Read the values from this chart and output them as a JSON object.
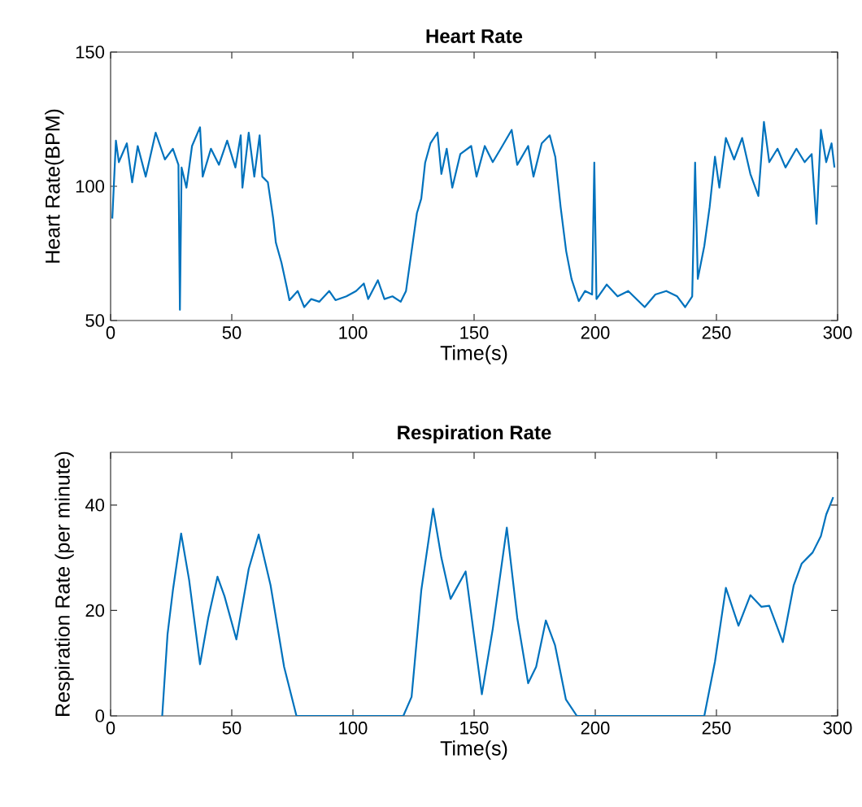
{
  "chart_data": [
    {
      "type": "line",
      "title": "Heart Rate",
      "xlabel": "Time(s)",
      "ylabel": "Heart Rate(BPM)",
      "xlim": [
        0,
        300
      ],
      "ylim": [
        50,
        150
      ],
      "xticks": [
        0,
        50,
        100,
        150,
        200,
        250,
        300
      ],
      "yticks": [
        50,
        100,
        150
      ],
      "grid": false,
      "marker": "none",
      "line_style": "solid",
      "series": [
        {
          "color": "#0072bd",
          "x": [
            0.7,
            2.2,
            3.4,
            6.7,
            8.9,
            11.2,
            14.5,
            18.6,
            22.4,
            25.7,
            28,
            28.6,
            29.3,
            31.3,
            33.6,
            36.9,
            38,
            41.4,
            44.7,
            48.1,
            51.5,
            53.7,
            54.4,
            57,
            59.3,
            61.5,
            62.6,
            64.9,
            67.1,
            68.2,
            70.5,
            72.7,
            73.8,
            77.2,
            79.9,
            82.8,
            86.1,
            90.2,
            92.8,
            97.3,
            101.3,
            104.5,
            106.3,
            110.3,
            113,
            116.3,
            119.7,
            121.9,
            124.2,
            126.4,
            128.2,
            129.8,
            132,
            134.9,
            136.5,
            138.7,
            141,
            144.3,
            148.8,
            151,
            154.4,
            157.7,
            161,
            165.5,
            167.8,
            172.3,
            174.5,
            177.9,
            181.2,
            183.5,
            185.7,
            188,
            190.2,
            193.2,
            195.8,
            198.7,
            199.6,
            200.5,
            204.7,
            209.2,
            213.6,
            220.4,
            224.8,
            229.3,
            233.8,
            237.1,
            240,
            241.2,
            242.3,
            245,
            247.2,
            249.4,
            251.2,
            253.9,
            257.3,
            260.6,
            264,
            267.3,
            269.6,
            271.8,
            275.2,
            278.5,
            283,
            286.4,
            289.3,
            291.3,
            293.1,
            295.3,
            297.5,
            298.7
          ],
          "values": [
            88,
            117,
            109,
            116,
            101.5,
            115,
            103.6,
            120,
            110,
            114,
            108,
            54,
            107,
            99.5,
            115,
            122,
            103.6,
            114,
            108,
            117,
            107,
            119,
            99.5,
            120,
            103.6,
            119,
            103.6,
            101.5,
            88,
            79,
            71.6,
            62.4,
            57.6,
            61,
            55,
            58,
            57,
            61,
            57.6,
            59,
            61,
            63.8,
            58,
            65,
            58,
            59,
            57,
            61,
            75.8,
            90,
            95.4,
            108.8,
            116,
            120,
            104.6,
            114,
            99.5,
            112,
            115,
            103.6,
            115,
            109,
            114,
            121,
            108,
            115,
            103.6,
            116,
            119,
            111,
            92.3,
            75.8,
            65.5,
            57.2,
            61,
            59.7,
            108.8,
            58,
            63.4,
            59,
            61,
            55,
            59.7,
            61,
            59,
            55,
            59,
            108.8,
            65.5,
            77.8,
            92.3,
            111,
            99.5,
            118,
            110,
            118,
            104.6,
            96.4,
            124,
            109,
            114,
            107,
            114,
            109,
            112,
            86,
            121,
            109,
            116,
            107
          ]
        }
      ]
    },
    {
      "type": "line",
      "title": "Respiration Rate",
      "xlabel": "Time(s)",
      "ylabel": "Respiration Rate (per minute)",
      "xlim": [
        0,
        300
      ],
      "ylim": [
        0,
        50
      ],
      "xticks": [
        0,
        50,
        100,
        150,
        200,
        250,
        300
      ],
      "yticks": [
        0,
        20,
        40
      ],
      "grid": false,
      "marker": "none",
      "line_style": "solid",
      "series": [
        {
          "color": "#0072bd",
          "x": [
            21.3,
            23.5,
            25.7,
            29.1,
            32.4,
            36.9,
            40.3,
            44.1,
            47,
            51.9,
            57,
            61.1,
            66,
            71.6,
            76.7,
            120.8,
            124.2,
            128.2,
            133.1,
            136.5,
            140.3,
            146.5,
            149.9,
            153.2,
            157.7,
            163.5,
            167.8,
            172.3,
            175.6,
            179.6,
            183.4,
            187.9,
            192.4,
            245,
            249.4,
            253.9,
            259.1,
            264,
            268.5,
            271.8,
            277.4,
            281.9,
            285.2,
            289.7,
            293.1,
            295.3,
            298.2
          ],
          "values": [
            0,
            15.5,
            23.8,
            34.6,
            25.8,
            9.8,
            18.6,
            26.4,
            22.7,
            14.5,
            27.9,
            34.4,
            24.8,
            9.3,
            0,
            0,
            3.6,
            23.8,
            39.3,
            30,
            22.2,
            27.4,
            15.5,
            4.1,
            16.5,
            35.7,
            18.6,
            6.2,
            9.3,
            18.1,
            13.4,
            3.1,
            0,
            0,
            10.3,
            24.3,
            17.1,
            22.9,
            20.7,
            20.9,
            14,
            24.8,
            28.9,
            31,
            34.1,
            38.2,
            41.5
          ]
        }
      ]
    }
  ]
}
